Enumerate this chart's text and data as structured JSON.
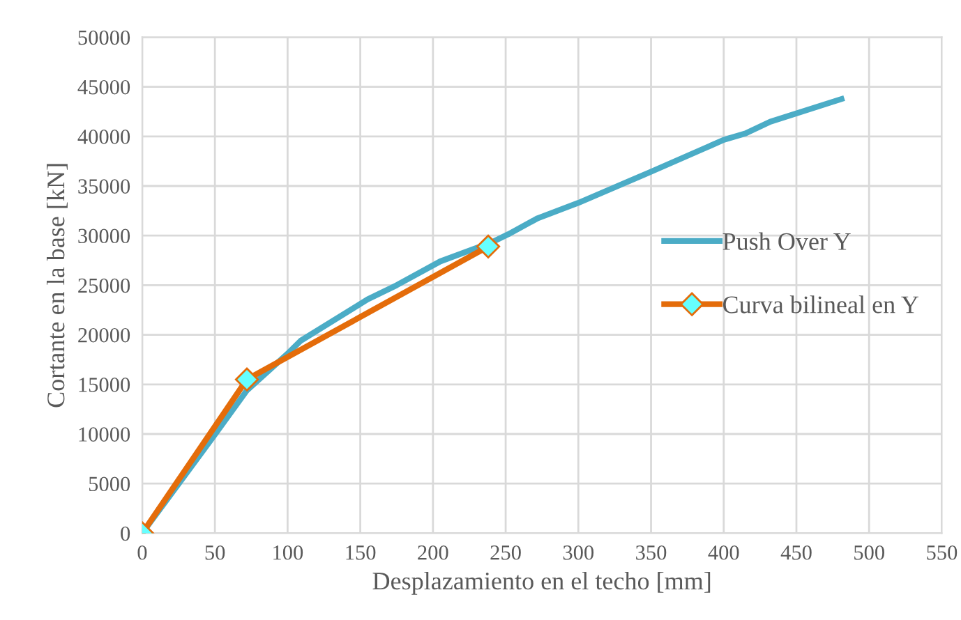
{
  "chart_data": {
    "type": "line",
    "xlabel": "Desplazamiento en el techo [mm]",
    "ylabel": "Cortante en la base [kN]",
    "xlim": [
      0,
      550
    ],
    "xticks": [
      0,
      50,
      100,
      150,
      200,
      250,
      300,
      350,
      400,
      450,
      500,
      550
    ],
    "ylim": [
      0,
      50000
    ],
    "yticks": [
      0,
      5000,
      10000,
      15000,
      20000,
      25000,
      30000,
      35000,
      40000,
      45000,
      50000
    ],
    "grid": true,
    "legend": "right",
    "series": [
      {
        "name": "Push Over Y",
        "color": "#4bacc6",
        "marker": "none",
        "x": [
          0,
          50,
          72,
          100,
          109,
          155,
          175,
          205,
          240,
          252,
          272,
          300,
          350,
          400,
          415,
          432,
          481
        ],
        "values": [
          0,
          9950,
          14400,
          18100,
          19400,
          23570,
          25000,
          27400,
          29300,
          30150,
          31750,
          33300,
          36440,
          39650,
          40300,
          41480,
          43770
        ]
      },
      {
        "name": "Curva bilineal en Y",
        "color": "#e46c0a",
        "marker": "diamond",
        "x": [
          0,
          72,
          238
        ],
        "values": [
          0,
          15500,
          28900
        ]
      }
    ]
  }
}
